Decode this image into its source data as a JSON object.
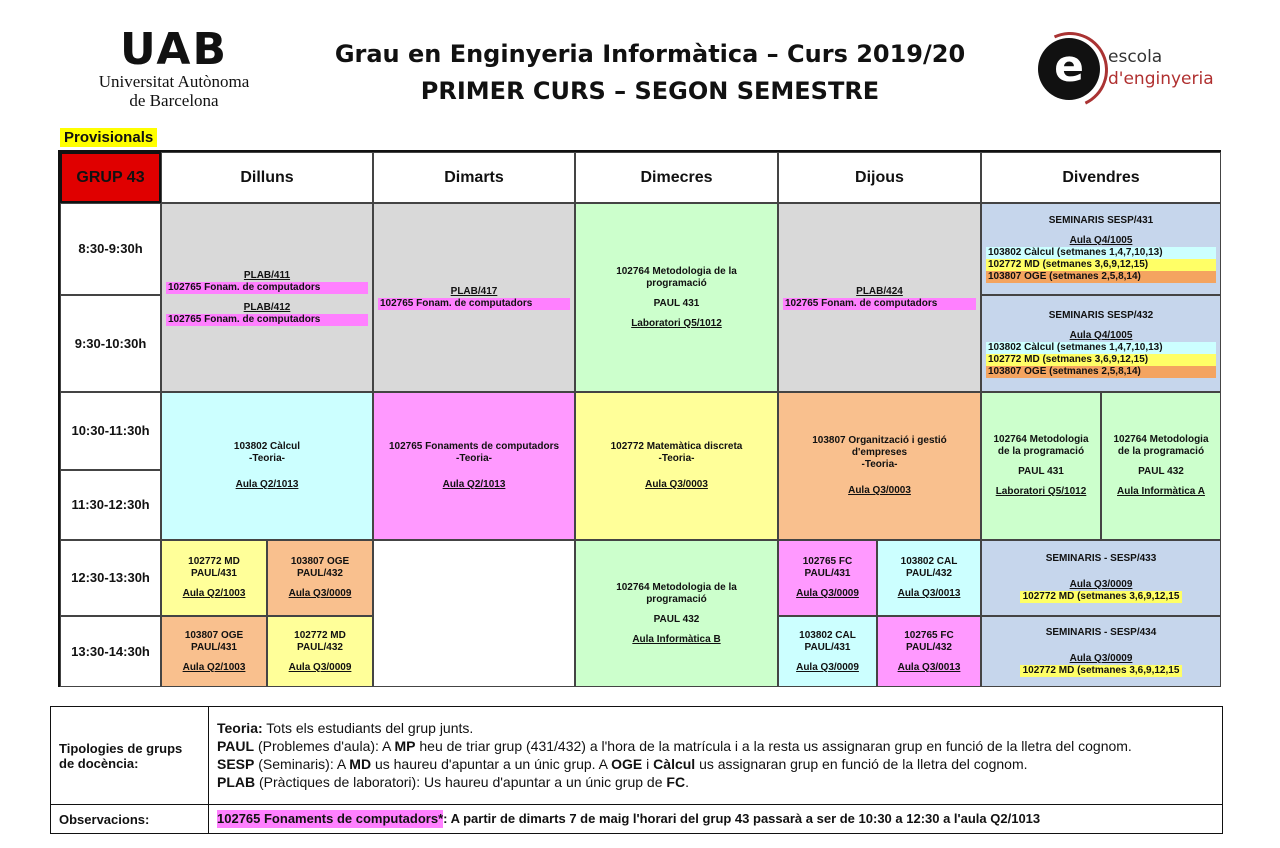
{
  "header": {
    "uab_mark": "UAB",
    "uab_name_1": "Universitat Autònoma",
    "uab_name_2": "de Barcelona",
    "title_1": "Grau en Enginyeria Informàtica – Curs 2019/20",
    "title_2": "PRIMER CURS – SEGON SEMESTRE",
    "ee_letter": "e",
    "ee_line1": "escola",
    "ee_line2": "d'enginyeria"
  },
  "provisional": "Provisionals",
  "group": "GRUP 43",
  "days": [
    "Dilluns",
    "Dimarts",
    "Dimecres",
    "Dijous",
    "Divendres"
  ],
  "times": [
    "8:30-9:30h",
    "9:30-10:30h",
    "10:30-11:30h",
    "11:30-12:30h",
    "12:30-13:30h",
    "13:30-14:30h"
  ],
  "slots": {
    "mon_am": {
      "plab1": "PLAB/411",
      "subj1": "102765 Fonam. de computadors",
      "plab2": "PLAB/412",
      "subj2": "102765 Fonam. de computadors"
    },
    "tue_am": {
      "plab": "PLAB/417",
      "subj": "102765 Fonam. de computadors"
    },
    "wed_am": {
      "subj": "102764 Metodologia de la programació",
      "group": "PAUL 431",
      "room": "Laboratori Q5/1012"
    },
    "thu_am": {
      "plab": "PLAB/424",
      "subj": "102765 Fonam. de computadors"
    },
    "fri_830": {
      "title": "SEMINARIS SESP/431",
      "room": "Aula Q4/1005",
      "l1": "103802 Càlcul (setmanes 1,4,7,10,13)",
      "l2": "102772 MD (setmanes 3,6,9,12,15)",
      "l3": "103807 OGE (setmanes 2,5,8,14)"
    },
    "fri_930": {
      "title": "SEMINARIS SESP/432",
      "room": "Aula Q4/1005",
      "l1": "103802 Càlcul (setmanes 1,4,7,10,13)",
      "l2": "102772 MD (setmanes 3,6,9,12,15)",
      "l3": "103807 OGE (setmanes 2,5,8,14)"
    },
    "mon_mid": {
      "subj": "103802 Càlcul",
      "type": "-Teoria-",
      "room": "Aula Q2/1013"
    },
    "tue_mid": {
      "subj": "102765 Fonaments de computadors",
      "type": "-Teoria-",
      "room": "Aula Q2/1013"
    },
    "wed_mid": {
      "subj": "102772 Matemàtica discreta",
      "type": "-Teoria-",
      "room": "Aula Q3/0003"
    },
    "thu_mid": {
      "subj1": "103807 Organització i gestió",
      "subj2": "d'empreses",
      "type": "-Teoria-",
      "room": "Aula Q3/0003"
    },
    "fri_mid_a": {
      "subj1": "102764 Metodologia",
      "subj2": "de la programació",
      "group": "PAUL 431",
      "room": "Laboratori Q5/1012"
    },
    "fri_mid_b": {
      "subj1": "102764 Metodologia",
      "subj2": "de la programació",
      "group": "PAUL 432",
      "room": "Aula Informàtica A"
    },
    "mon_1230_a": {
      "subj": "102772 MD",
      "group": "PAUL/431",
      "room": "Aula Q2/1003"
    },
    "mon_1230_b": {
      "subj": "103807 OGE",
      "group": "PAUL/432",
      "room": "Aula Q3/0009"
    },
    "mon_1330_a": {
      "subj": "103807 OGE",
      "group": "PAUL/431",
      "room": "Aula Q2/1003"
    },
    "mon_1330_b": {
      "subj": "102772 MD",
      "group": "PAUL/432",
      "room": "Aula Q3/0009"
    },
    "wed_pm": {
      "subj": "102764 Metodologia de la programació",
      "group": "PAUL 432",
      "room": "Aula Informàtica B"
    },
    "thu_1230_a": {
      "subj": "102765 FC",
      "group": "PAUL/431",
      "room": "Aula Q3/0009"
    },
    "thu_1230_b": {
      "subj": "103802 CAL",
      "group": "PAUL/432",
      "room": "Aula Q3/0013"
    },
    "thu_1330_a": {
      "subj": "103802 CAL",
      "group": "PAUL/431",
      "room": "Aula Q3/0009"
    },
    "thu_1330_b": {
      "subj": "102765 FC",
      "group": "PAUL/432",
      "room": "Aula Q3/0013"
    },
    "fri_1230": {
      "title": "SEMINARIS - SESP/433",
      "room": "Aula Q3/0009",
      "l1": "102772 MD (setmanes 3,6,9,12,15"
    },
    "fri_1330": {
      "title": "SEMINARIS - SESP/434",
      "room": "Aula Q3/0009",
      "l1": "102772 MD (setmanes 3,6,9,12,15"
    }
  },
  "legend": {
    "tip_label": "Tipologies de grups de docència:",
    "teoria_k": "Teoria:",
    "teoria_v": "Tots els estudiants del grup junts.",
    "paul_k": "PAUL",
    "paul_v1": "(Problemes d'aula): A",
    "paul_mp": "MP",
    "paul_v2": "heu de triar grup (431/432) a l'hora de la matrícula i a la resta us assignaran grup en funció de la lletra del cognom.",
    "sesp_k": "SESP",
    "sesp_v1": "(Seminaris): A",
    "sesp_md": "MD",
    "sesp_v2": "us haureu d'apuntar a un únic grup. A",
    "sesp_oge": "OGE",
    "sesp_i": "i",
    "sesp_calc": "Càlcul",
    "sesp_v3": "us assignaran grup en funció de la lletra del cognom.",
    "plab_k": "PLAB",
    "plab_v1": "(Pràctiques de laboratori): Us haureu d'apuntar a un únic grup de",
    "plab_fc": "FC",
    "plab_dot": ".",
    "obs_label": "Observacions:",
    "obs_hl": "102765 Fonaments de computadors*",
    "obs_text": ": A partir de dimarts 7 de maig l'horari del grup 43 passarà a ser de 10:30 a 12:30 a l'aula Q2/1013"
  },
  "colors": {
    "grup": "#e00000",
    "gray": "#d9d9d9",
    "cyan": "#ccffff",
    "pink": "#ff99ff",
    "yellow": "#ffff99",
    "green": "#ccffcc",
    "orange": "#f9c08e",
    "blue": "#c6d6ec"
  }
}
